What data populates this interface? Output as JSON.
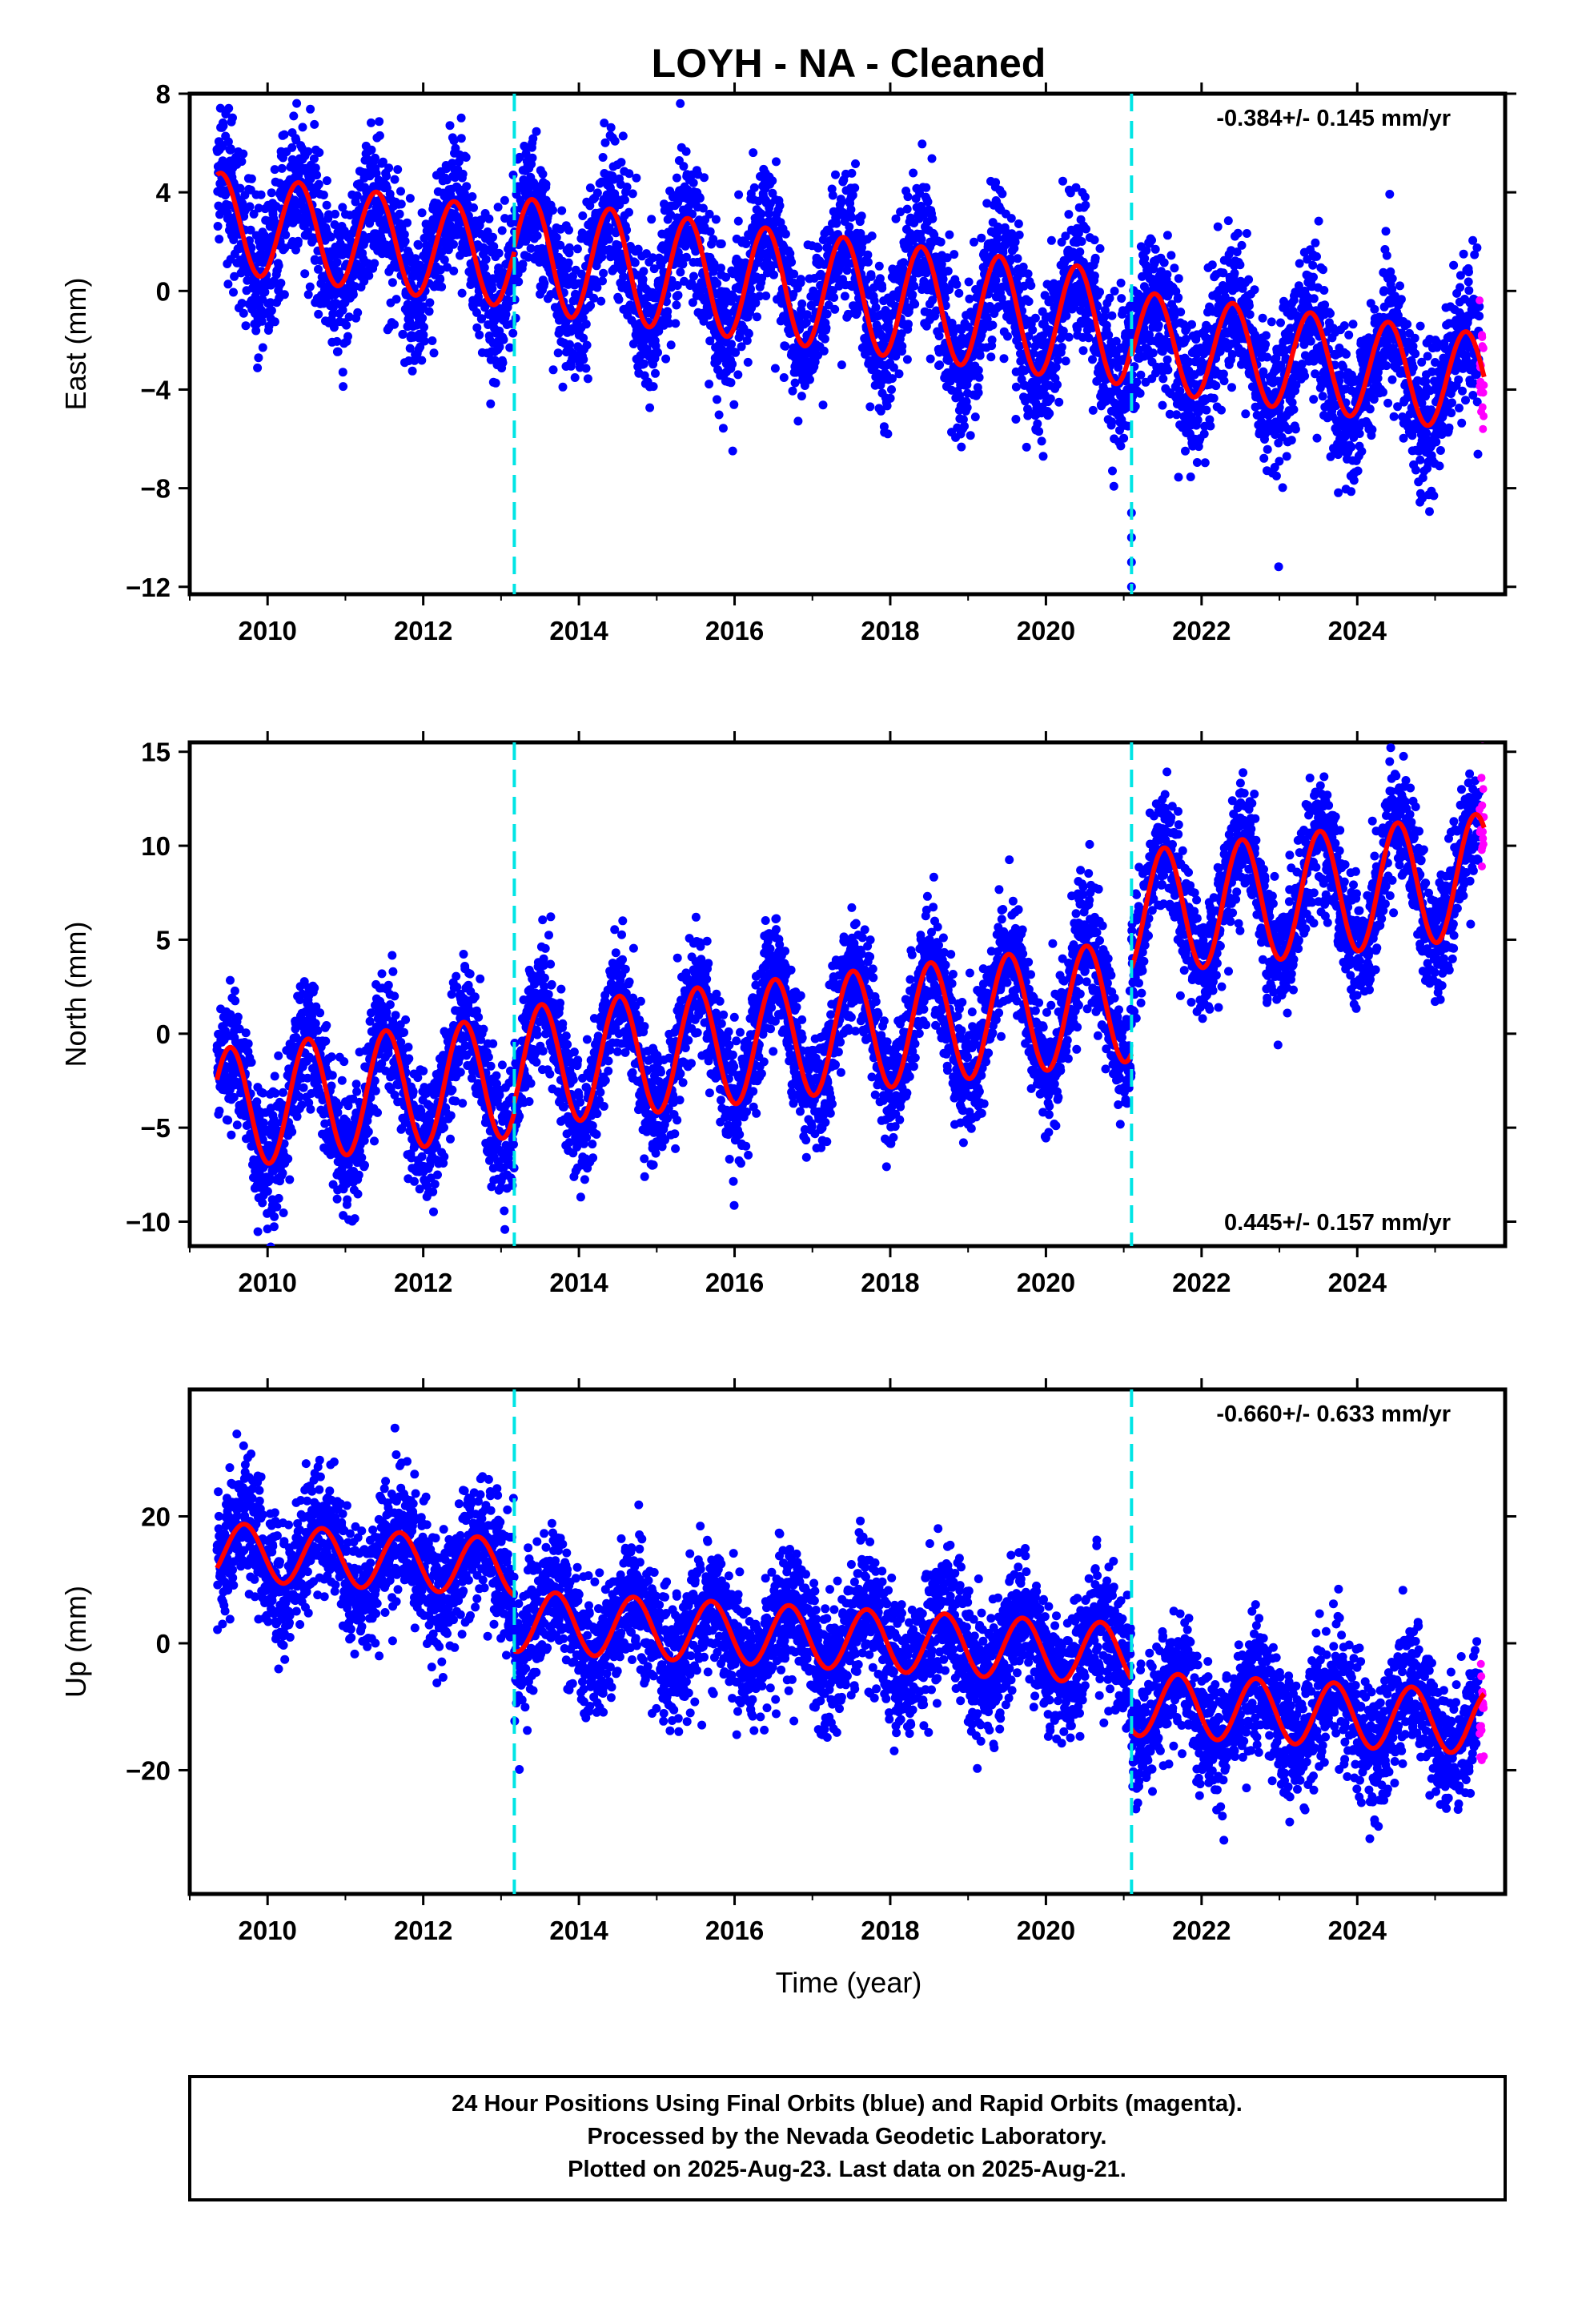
{
  "title": "LOYH  - NA - Cleaned",
  "colors": {
    "final": "#0000ff",
    "rapid": "#ff00ff",
    "model": "#ff0000",
    "break": "#00e5e5"
  },
  "xlabel": "Time (year)",
  "footer": {
    "line1": "24 Hour Positions Using Final Orbits (blue) and Rapid Orbits (magenta).",
    "line2": "Processed by the Nevada Geodetic Laboratory.",
    "line3": "Plotted on 2025-Aug-23. Last data on 2025-Aug-21."
  },
  "chart_data": [
    {
      "type": "scatter",
      "name": "east",
      "ylabel": "East (mm)",
      "rate_text": "-0.384+/- 0.145 mm/yr",
      "xlim": [
        2009.0,
        2025.9
      ],
      "ylim": [
        -12.3,
        8.0
      ],
      "xticks": [
        2010,
        2012,
        2014,
        2016,
        2018,
        2020,
        2022,
        2024
      ],
      "yticks": [
        8,
        4,
        0,
        -4,
        -8,
        -12
      ],
      "ytick_labels": [
        "8",
        "4",
        "0",
        "−4",
        "−8",
        "−12"
      ],
      "breaks": [
        2013.17,
        2021.1
      ],
      "data_start": 2009.35,
      "data_end": 2025.63,
      "rapid_start": 2025.57,
      "outlier_x": 2021.1,
      "outlier_values": [
        -9.0,
        -10.0,
        -11.0,
        -12.0
      ],
      "noise": 1.5,
      "model": {
        "segments": [
          {
            "start": 2009.35,
            "end": 2013.17,
            "offset": 2.8,
            "trend": -0.384,
            "amp": 2.0,
            "phase": 0.4
          },
          {
            "start": 2013.17,
            "end": 2021.1,
            "offset": 1.5,
            "trend": -0.384,
            "amp": 2.3,
            "phase": 0.4
          },
          {
            "start": 2021.1,
            "end": 2025.63,
            "offset": -2.0,
            "trend": -0.384,
            "amp": 2.0,
            "phase": 0.4
          }
        ]
      }
    },
    {
      "type": "scatter",
      "name": "north",
      "ylabel": "North (mm)",
      "rate_text": "0.445+/- 0.157 mm/yr",
      "xlim": [
        2009.0,
        2025.9
      ],
      "ylim": [
        -11.3,
        15.5
      ],
      "xticks": [
        2010,
        2012,
        2014,
        2016,
        2018,
        2020,
        2022,
        2024
      ],
      "yticks": [
        15,
        10,
        5,
        0,
        -5,
        -10
      ],
      "ytick_labels": [
        "15",
        "10",
        "5",
        "0",
        "−5",
        "−10"
      ],
      "breaks": [
        2013.17,
        2021.1
      ],
      "data_start": 2009.35,
      "data_end": 2025.63,
      "rapid_start": 2025.57,
      "noise": 1.6,
      "model": {
        "segments": [
          {
            "start": 2009.35,
            "end": 2013.17,
            "offset": -4.0,
            "trend": 0.445,
            "amp": 3.2,
            "phase": 0.52
          },
          {
            "start": 2013.17,
            "end": 2021.1,
            "offset": -1.8,
            "trend": 0.445,
            "amp": 3.2,
            "phase": 0.52
          },
          {
            "start": 2021.1,
            "end": 2025.63,
            "offset": 6.4,
            "trend": 0.445,
            "amp": 3.3,
            "phase": 0.52
          }
        ]
      }
    },
    {
      "type": "scatter",
      "name": "up",
      "ylabel": "Up (mm)",
      "rate_text": "-0.660+/- 0.633 mm/yr",
      "xlim": [
        2009.0,
        2025.9
      ],
      "ylim": [
        -39.5,
        40.0
      ],
      "xticks": [
        2010,
        2012,
        2014,
        2016,
        2018,
        2020,
        2022,
        2024
      ],
      "yticks": [
        20,
        0,
        -20
      ],
      "ytick_labels": [
        "20",
        "0",
        "−20"
      ],
      "breaks": [
        2013.17,
        2021.1
      ],
      "data_start": 2009.35,
      "data_end": 2025.63,
      "rapid_start": 2025.57,
      "noise": 5.0,
      "model": {
        "segments": [
          {
            "start": 2009.35,
            "end": 2013.17,
            "offset": 14.5,
            "trend": -0.66,
            "amp": 4.5,
            "phase": 0.7
          },
          {
            "start": 2013.17,
            "end": 2021.1,
            "offset": 3.5,
            "trend": -0.66,
            "amp": 4.8,
            "phase": 0.7
          },
          {
            "start": 2021.1,
            "end": 2025.63,
            "offset": -9.5,
            "trend": -0.66,
            "amp": 5.0,
            "phase": 0.7
          }
        ]
      }
    }
  ]
}
